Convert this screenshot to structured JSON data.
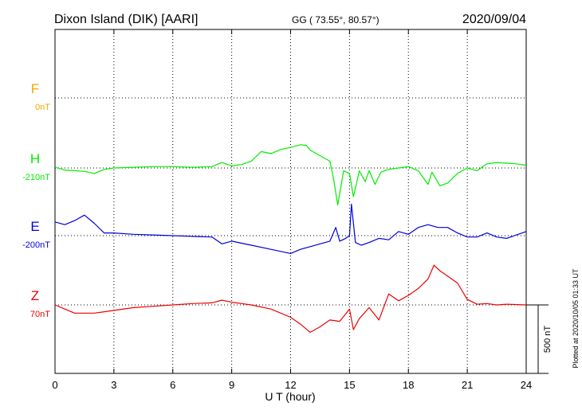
{
  "header": {
    "station": "Dixon Island (DIK)  [AARI]",
    "coords": "GG ( 73.55°,  80.57°)",
    "date": "2020/09/04"
  },
  "side_note": "Plotted at 2020/10/05 01:33 UT",
  "chart_data": {
    "type": "line",
    "xlabel": "U T (hour)",
    "xlim": [
      0,
      24
    ],
    "xticks": [
      "0",
      "3",
      "6",
      "9",
      "12",
      "15",
      "18",
      "21",
      "24"
    ],
    "scale_bar": {
      "label": "500 nT",
      "value_nT": 500
    },
    "series": [
      {
        "name": "F",
        "baseline_label": "0nT",
        "color": "#f5a800",
        "points": []
      },
      {
        "name": "H",
        "baseline_label": "-210nT",
        "color": "#00ee00",
        "points": [
          [
            0,
            5
          ],
          [
            0.5,
            -15
          ],
          [
            1,
            -20
          ],
          [
            1.5,
            -25
          ],
          [
            2,
            -40
          ],
          [
            2.5,
            -10
          ],
          [
            3,
            0
          ],
          [
            4,
            5
          ],
          [
            5,
            10
          ],
          [
            6,
            10
          ],
          [
            7,
            5
          ],
          [
            8,
            10
          ],
          [
            8.5,
            40
          ],
          [
            9,
            15
          ],
          [
            9.5,
            25
          ],
          [
            10,
            50
          ],
          [
            10.5,
            120
          ],
          [
            11,
            105
          ],
          [
            11.5,
            135
          ],
          [
            12,
            150
          ],
          [
            12.5,
            170
          ],
          [
            12.8,
            165
          ],
          [
            13,
            130
          ],
          [
            13.5,
            90
          ],
          [
            14,
            50
          ],
          [
            14.2,
            -90
          ],
          [
            14.4,
            -270
          ],
          [
            14.7,
            -20
          ],
          [
            15,
            -40
          ],
          [
            15.2,
            -210
          ],
          [
            15.5,
            -20
          ],
          [
            15.8,
            -100
          ],
          [
            16,
            -20
          ],
          [
            16.3,
            -120
          ],
          [
            16.6,
            -30
          ],
          [
            17,
            -10
          ],
          [
            17.5,
            0
          ],
          [
            18,
            10
          ],
          [
            18.5,
            -20
          ],
          [
            19,
            -120
          ],
          [
            19.2,
            -30
          ],
          [
            19.6,
            -130
          ],
          [
            20,
            -110
          ],
          [
            20.5,
            -40
          ],
          [
            21,
            0
          ],
          [
            21.5,
            -20
          ],
          [
            22,
            30
          ],
          [
            22.5,
            40
          ],
          [
            23,
            35
          ],
          [
            23.5,
            30
          ],
          [
            24,
            20
          ]
        ]
      },
      {
        "name": "E",
        "baseline_label": "-200nT",
        "color": "#0000dd",
        "points": [
          [
            0,
            100
          ],
          [
            0.5,
            80
          ],
          [
            1,
            110
          ],
          [
            1.5,
            150
          ],
          [
            2,
            90
          ],
          [
            2.5,
            20
          ],
          [
            3,
            20
          ],
          [
            4,
            10
          ],
          [
            5,
            5
          ],
          [
            6,
            0
          ],
          [
            7,
            -5
          ],
          [
            8,
            -10
          ],
          [
            8.5,
            -60
          ],
          [
            9,
            -40
          ],
          [
            10,
            -70
          ],
          [
            11,
            -100
          ],
          [
            12,
            -130
          ],
          [
            12.5,
            -100
          ],
          [
            13,
            -80
          ],
          [
            13.5,
            -60
          ],
          [
            14,
            -40
          ],
          [
            14.3,
            60
          ],
          [
            14.5,
            -40
          ],
          [
            14.8,
            -20
          ],
          [
            15,
            0
          ],
          [
            15.1,
            230
          ],
          [
            15.3,
            -50
          ],
          [
            15.6,
            -70
          ],
          [
            16,
            -50
          ],
          [
            16.5,
            -20
          ],
          [
            17,
            -30
          ],
          [
            17.5,
            30
          ],
          [
            18,
            10
          ],
          [
            18.5,
            60
          ],
          [
            19,
            80
          ],
          [
            19.5,
            60
          ],
          [
            20,
            60
          ],
          [
            20.5,
            20
          ],
          [
            21,
            -10
          ],
          [
            21.5,
            -10
          ],
          [
            22,
            20
          ],
          [
            22.5,
            -10
          ],
          [
            23,
            -20
          ],
          [
            24,
            30
          ]
        ]
      },
      {
        "name": "Z",
        "baseline_label": "70nT",
        "color": "#ee0000",
        "points": [
          [
            0,
            0
          ],
          [
            0.5,
            -30
          ],
          [
            1,
            -60
          ],
          [
            2,
            -60
          ],
          [
            3,
            -40
          ],
          [
            4,
            -20
          ],
          [
            5,
            -10
          ],
          [
            6,
            0
          ],
          [
            7,
            10
          ],
          [
            8,
            15
          ],
          [
            8.5,
            35
          ],
          [
            9,
            20
          ],
          [
            10,
            0
          ],
          [
            11,
            -30
          ],
          [
            12,
            -90
          ],
          [
            12.5,
            -140
          ],
          [
            13,
            -200
          ],
          [
            13.5,
            -160
          ],
          [
            14,
            -110
          ],
          [
            14.5,
            -120
          ],
          [
            15,
            -30
          ],
          [
            15.2,
            -180
          ],
          [
            15.5,
            -100
          ],
          [
            16,
            -20
          ],
          [
            16.5,
            -110
          ],
          [
            17,
            80
          ],
          [
            17.5,
            30
          ],
          [
            18,
            70
          ],
          [
            18.5,
            120
          ],
          [
            19,
            190
          ],
          [
            19.3,
            290
          ],
          [
            19.6,
            250
          ],
          [
            20,
            210
          ],
          [
            20.5,
            160
          ],
          [
            21,
            40
          ],
          [
            21.5,
            5
          ],
          [
            22,
            10
          ],
          [
            22.5,
            0
          ],
          [
            23,
            5
          ],
          [
            24,
            0
          ]
        ]
      }
    ]
  }
}
